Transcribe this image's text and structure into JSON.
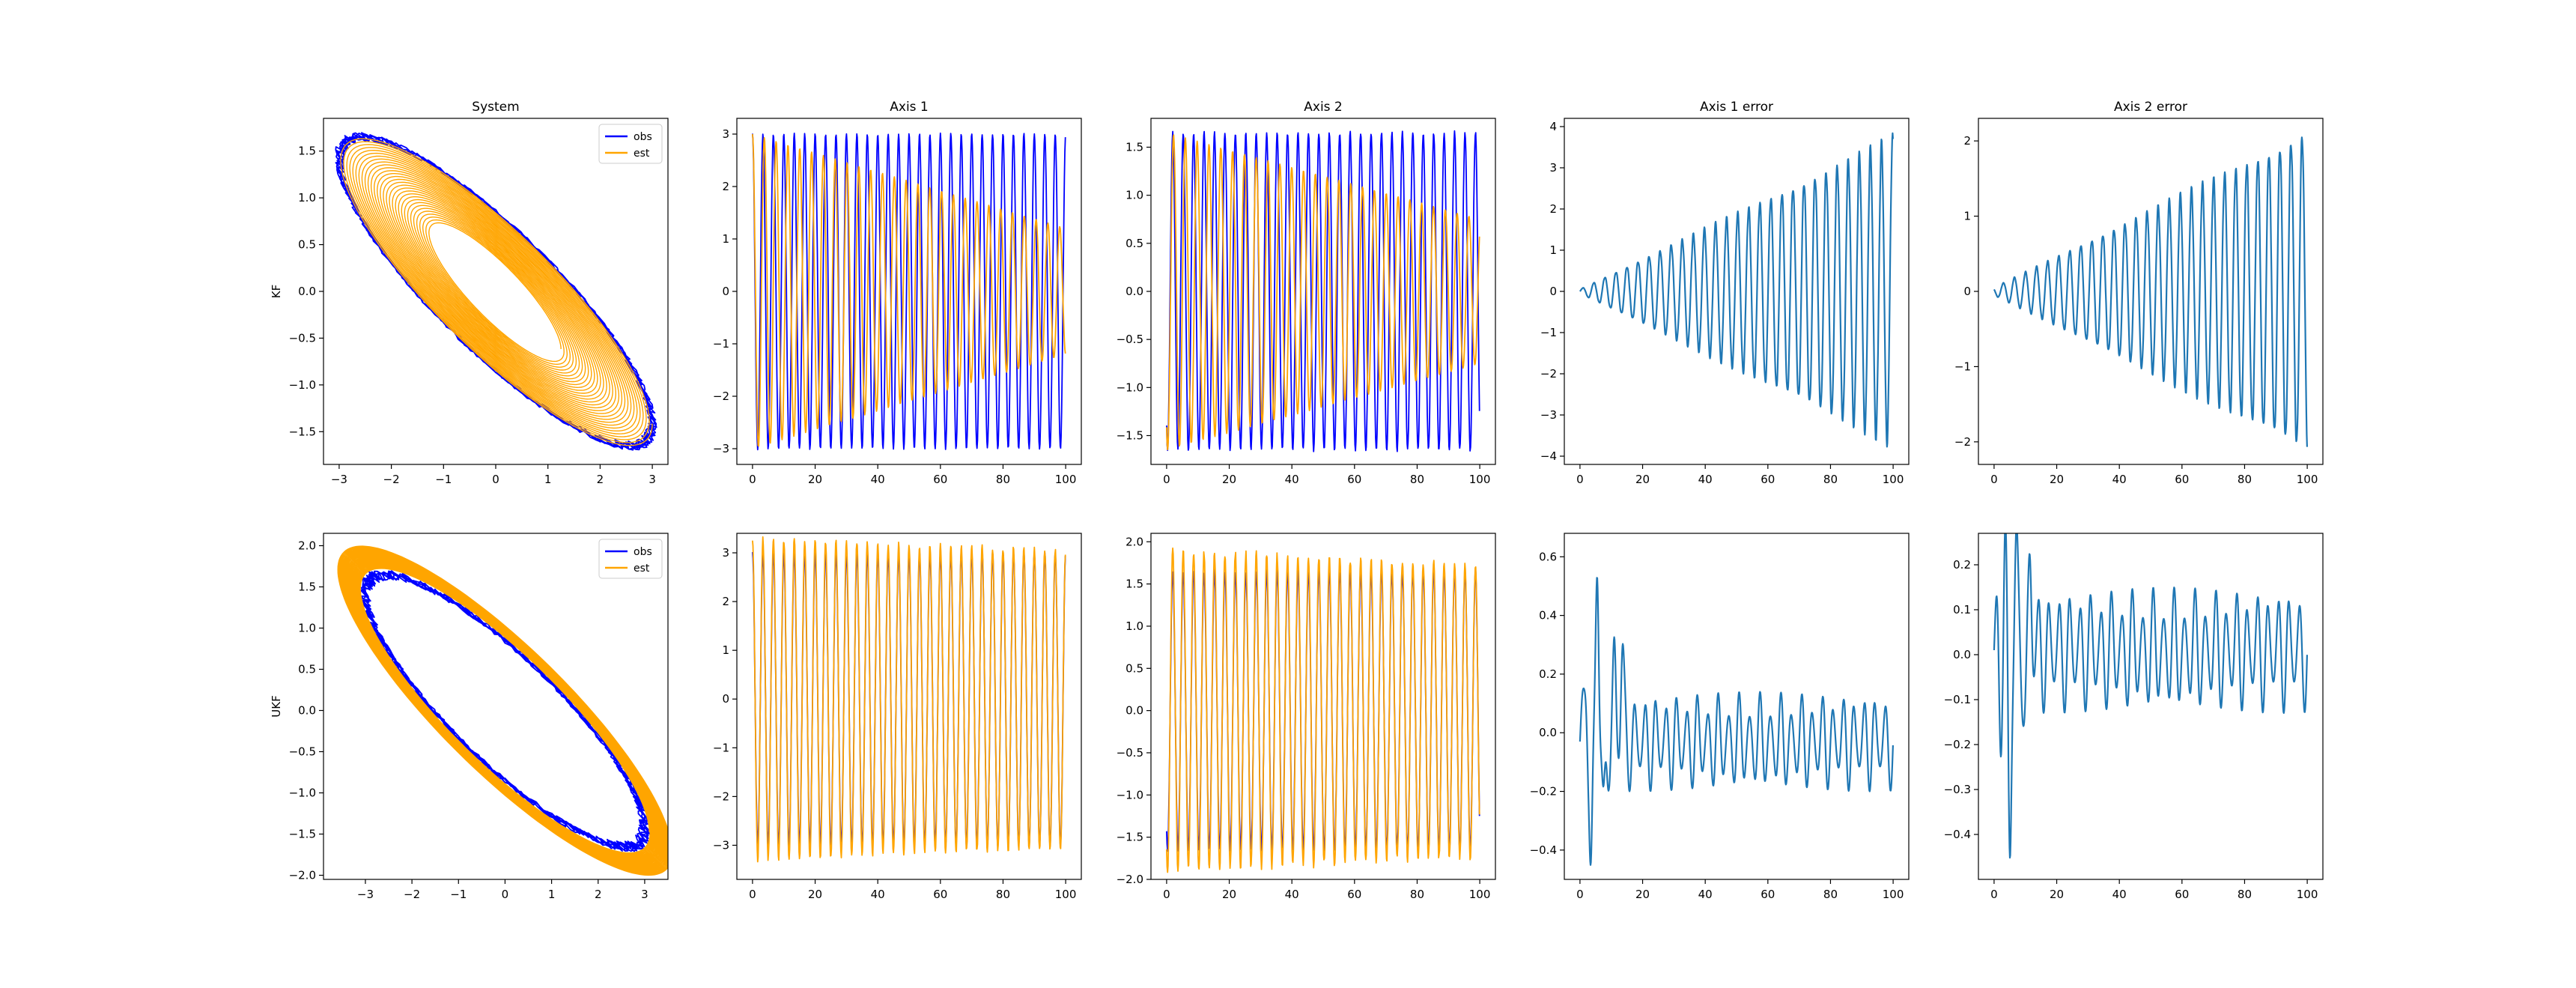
{
  "figure": {
    "row_labels": [
      "KF",
      "UKF"
    ],
    "column_titles": [
      "System",
      "Axis 1",
      "Axis 2",
      "Axis 1 error",
      "Axis 2 error"
    ]
  },
  "colors": {
    "obs": "#0000ff",
    "est": "#ffa500",
    "error": "#1f77b4",
    "overlap": "#a0522d"
  },
  "chart_data": [
    {
      "id": "kf-system",
      "type": "line",
      "title": "System",
      "ylabel": "KF",
      "xlabel": "",
      "xlim": [
        -3.3,
        3.3
      ],
      "ylim": [
        -1.85,
        1.85
      ],
      "xticks": [
        -3,
        -2,
        -1,
        0,
        1,
        2,
        3
      ],
      "yticks": [
        -1.5,
        -1.0,
        -0.5,
        0.0,
        0.5,
        1.0,
        1.5
      ],
      "legend": {
        "position": "top-right",
        "entries": [
          "obs",
          "est"
        ]
      },
      "series": [
        {
          "name": "obs",
          "kind": "ellipse",
          "amp1": 3.0,
          "amp2": 1.65,
          "phase": 2.6,
          "jitter": 0.03,
          "turns": 6
        },
        {
          "name": "est",
          "kind": "spiral-ellipse",
          "amp1_start": 3.0,
          "amp1_end": 1.25,
          "amp2_start": 1.65,
          "amp2_end": 0.72,
          "phase": 2.6,
          "turns": 30
        }
      ]
    },
    {
      "id": "kf-axis1",
      "type": "line",
      "title": "Axis 1",
      "ylabel": "",
      "xlabel": "",
      "xlim": [
        -5,
        105
      ],
      "ylim": [
        -3.3,
        3.3
      ],
      "xticks": [
        0,
        20,
        40,
        60,
        80,
        100
      ],
      "yticks": [
        -3,
        -2,
        -1,
        0,
        1,
        2,
        3
      ],
      "series": [
        {
          "name": "obs",
          "kind": "sine",
          "amp_start": 3.0,
          "amp_end": 3.0,
          "freq": 0.3,
          "phase": 0.0,
          "noise": 0.02
        },
        {
          "name": "est",
          "kind": "sine",
          "amp_start": 3.0,
          "amp_end": 1.2,
          "freq": 0.265,
          "phase": 0.0,
          "noise": 0.0
        }
      ]
    },
    {
      "id": "kf-axis2",
      "type": "line",
      "title": "Axis 2",
      "ylabel": "",
      "xlabel": "",
      "xlim": [
        -5,
        105
      ],
      "ylim": [
        -1.8,
        1.8
      ],
      "xticks": [
        0,
        20,
        40,
        60,
        80,
        100
      ],
      "yticks": [
        -1.5,
        -1.0,
        -0.5,
        0.0,
        0.5,
        1.0,
        1.5
      ],
      "series": [
        {
          "name": "obs",
          "kind": "sine",
          "amp_start": 1.65,
          "amp_end": 1.65,
          "freq": 0.3,
          "phase": 2.6,
          "noise": 0.02
        },
        {
          "name": "est",
          "kind": "sine",
          "amp_start": 1.65,
          "amp_end": 0.75,
          "freq": 0.265,
          "phase": 2.6,
          "noise": 0.0
        }
      ]
    },
    {
      "id": "kf-axis1-error",
      "type": "line",
      "title": "Axis 1 error",
      "ylabel": "",
      "xlabel": "",
      "xlim": [
        -5,
        105
      ],
      "ylim": [
        -4.2,
        4.2
      ],
      "xticks": [
        0,
        20,
        40,
        60,
        80,
        100
      ],
      "yticks": [
        -4,
        -3,
        -2,
        -1,
        0,
        1,
        2,
        3,
        4
      ],
      "series": [
        {
          "name": "error",
          "kind": "growing-sine",
          "amp_start": 0.05,
          "amp_end": 3.7,
          "freq": 0.283,
          "phase": 0.0
        }
      ]
    },
    {
      "id": "kf-axis2-error",
      "type": "line",
      "title": "Axis 2 error",
      "ylabel": "",
      "xlabel": "",
      "xlim": [
        -5,
        105
      ],
      "ylim": [
        -2.3,
        2.3
      ],
      "xticks": [
        0,
        20,
        40,
        60,
        80,
        100
      ],
      "yticks": [
        -2,
        -1,
        0,
        1,
        2
      ],
      "series": [
        {
          "name": "error",
          "kind": "growing-sine",
          "amp_start": 0.05,
          "amp_end": 2.1,
          "freq": 0.283,
          "phase": 2.6
        }
      ]
    },
    {
      "id": "ukf-system",
      "type": "line",
      "title": "",
      "ylabel": "UKF",
      "xlabel": "",
      "xlim": [
        -3.9,
        3.5
      ],
      "ylim": [
        -2.05,
        2.15
      ],
      "xticks": [
        -3,
        -2,
        -1,
        0,
        1,
        2,
        3
      ],
      "yticks": [
        -2.0,
        -1.5,
        -1.0,
        -0.5,
        0.0,
        0.5,
        1.0,
        1.5,
        2.0
      ],
      "legend": {
        "position": "top-right",
        "entries": [
          "obs",
          "est"
        ]
      },
      "series": [
        {
          "name": "obs",
          "kind": "ellipse",
          "amp1": 3.0,
          "amp2": 1.65,
          "phase": 2.6,
          "jitter": 0.04,
          "turns": 6
        },
        {
          "name": "est",
          "kind": "spiral-ellipse",
          "amp1_start": 3.6,
          "amp1_end": 3.1,
          "amp2_start": 2.0,
          "amp2_end": 1.72,
          "phase": 2.6,
          "turns": 30
        }
      ]
    },
    {
      "id": "ukf-axis1",
      "type": "line",
      "title": "",
      "ylabel": "",
      "xlabel": "",
      "xlim": [
        -5,
        105
      ],
      "ylim": [
        -3.7,
        3.4
      ],
      "xticks": [
        0,
        20,
        40,
        60,
        80,
        100
      ],
      "yticks": [
        -3,
        -2,
        -1,
        0,
        1,
        2,
        3
      ],
      "series": [
        {
          "name": "obs",
          "kind": "sine",
          "amp_start": 3.0,
          "amp_end": 3.0,
          "freq": 0.3,
          "phase": 0.0,
          "noise": 0.02
        },
        {
          "name": "est",
          "kind": "sine",
          "amp_start": 3.3,
          "amp_end": 3.05,
          "freq": 0.3,
          "phase": 0.0,
          "noise": 0.06
        }
      ]
    },
    {
      "id": "ukf-axis2",
      "type": "line",
      "title": "",
      "ylabel": "",
      "xlabel": "",
      "xlim": [
        -5,
        105
      ],
      "ylim": [
        -2.0,
        2.1
      ],
      "xticks": [
        0,
        20,
        40,
        60,
        80,
        100
      ],
      "yticks": [
        -2.0,
        -1.5,
        -1.0,
        -0.5,
        0.0,
        0.5,
        1.0,
        1.5,
        2.0
      ],
      "series": [
        {
          "name": "obs",
          "kind": "sine",
          "amp_start": 1.65,
          "amp_end": 1.65,
          "freq": 0.3,
          "phase": 2.6,
          "noise": 0.02
        },
        {
          "name": "est",
          "kind": "sine",
          "amp_start": 1.9,
          "amp_end": 1.72,
          "freq": 0.3,
          "phase": 2.6,
          "noise": 0.05
        }
      ]
    },
    {
      "id": "ukf-axis1-error",
      "type": "line",
      "title": "",
      "ylabel": "",
      "xlabel": "",
      "xlim": [
        -5,
        105
      ],
      "ylim": [
        -0.5,
        0.68
      ],
      "xticks": [
        0,
        20,
        40,
        60,
        80,
        100
      ],
      "yticks": [
        -0.4,
        -0.2,
        0.0,
        0.2,
        0.4,
        0.6
      ],
      "series": [
        {
          "name": "error",
          "kind": "ukf-error",
          "base": -0.03,
          "osc": 0.17,
          "freq": 0.3,
          "spikes": [
            [
              2.0,
              0.2
            ],
            [
              3.5,
              -0.45
            ],
            [
              5.5,
              0.63
            ],
            [
              7.5,
              -0.3
            ],
            [
              11,
              0.25
            ],
            [
              13.5,
              0.28
            ]
          ]
        }
      ]
    },
    {
      "id": "ukf-axis2-error",
      "type": "line",
      "title": "",
      "ylabel": "",
      "xlabel": "",
      "xlim": [
        -5,
        105
      ],
      "ylim": [
        -0.5,
        0.27
      ],
      "xticks": [
        0,
        20,
        40,
        60,
        80,
        100
      ],
      "yticks": [
        -0.4,
        -0.3,
        -0.2,
        -0.1,
        0.0,
        0.1,
        0.2
      ],
      "series": [
        {
          "name": "error",
          "kind": "ukf-error",
          "base": 0.01,
          "osc": 0.14,
          "freq": 0.3,
          "spikes": [
            [
              2.0,
              -0.14
            ],
            [
              3.5,
              0.25
            ],
            [
              5.0,
              -0.46
            ],
            [
              7.0,
              0.2
            ],
            [
              10,
              -0.1
            ],
            [
              11.5,
              0.18
            ]
          ]
        }
      ]
    }
  ]
}
